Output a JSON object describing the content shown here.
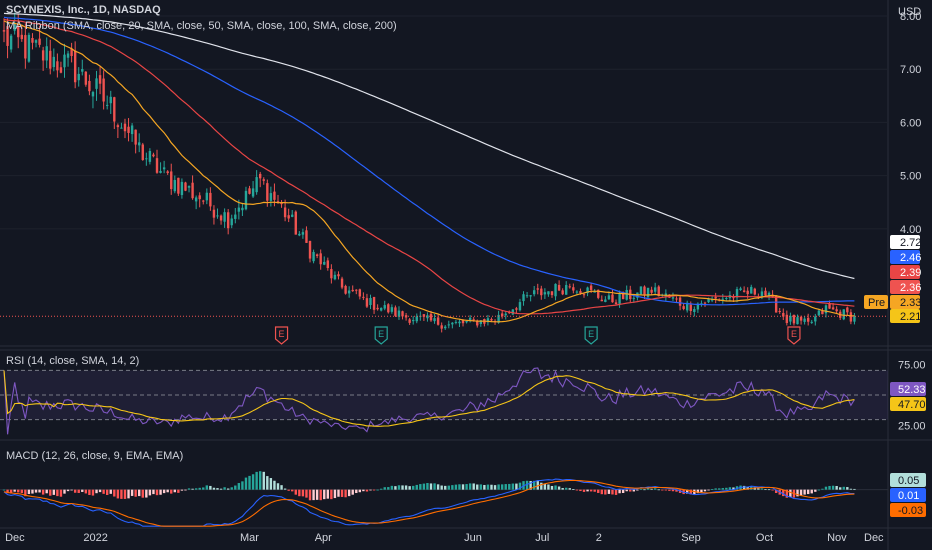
{
  "header": {
    "symbol_line": "SCYNEXIS, Inc., 1D, NASDAQ",
    "ma_ribbon": "MA Ribbon (SMA, close, 20, SMA, close, 50, SMA, close, 100, SMA, close, 200)",
    "rsi_legend": "RSI (14, close, SMA, 14, 2)",
    "macd_legend": "MACD (12, 26, close, 9, EMA, EMA)",
    "currency": "USD"
  },
  "colors": {
    "background": "#131722",
    "up": "#26a69a",
    "down": "#ef5350",
    "sma20": "#f5a623",
    "sma50": "#e84545",
    "sma100": "#2962ff",
    "sma200": "#e0e3eb",
    "rsi": "#7e57c2",
    "rsi_ma": "#f5c518",
    "macd": "#2962ff",
    "signal": "#ff6d00"
  },
  "chart_data": [
    {
      "type": "candlestick",
      "title": "SCYNEXIS, Inc., 1D, NASDAQ",
      "ylim": [
        1.8,
        8.3
      ],
      "y_ticks": [
        "8.00",
        "7.00",
        "6.00",
        "5.00",
        "4.00"
      ],
      "x_labels": [
        "Dec",
        "2022",
        "Mar",
        "Apr",
        "Jun",
        "Jul",
        "2",
        "Sep",
        "Oct",
        "Nov",
        "Dec"
      ],
      "anchors": [
        {
          "t": 0,
          "v": 7.6
        },
        {
          "t": 10,
          "v": 7.3
        },
        {
          "t": 20,
          "v": 7.0
        },
        {
          "t": 30,
          "v": 6.3
        },
        {
          "t": 38,
          "v": 5.5
        },
        {
          "t": 45,
          "v": 5.0
        },
        {
          "t": 55,
          "v": 4.6
        },
        {
          "t": 63,
          "v": 4.2
        },
        {
          "t": 72,
          "v": 4.9
        },
        {
          "t": 78,
          "v": 4.4
        },
        {
          "t": 86,
          "v": 3.6
        },
        {
          "t": 95,
          "v": 2.9
        },
        {
          "t": 103,
          "v": 2.6
        },
        {
          "t": 113,
          "v": 2.35
        },
        {
          "t": 125,
          "v": 2.2
        },
        {
          "t": 138,
          "v": 2.3
        },
        {
          "t": 148,
          "v": 2.75
        },
        {
          "t": 160,
          "v": 2.95
        },
        {
          "t": 170,
          "v": 2.65
        },
        {
          "t": 182,
          "v": 2.85
        },
        {
          "t": 192,
          "v": 2.55
        },
        {
          "t": 205,
          "v": 2.75
        },
        {
          "t": 213,
          "v": 2.85
        },
        {
          "t": 220,
          "v": 2.3
        },
        {
          "t": 226,
          "v": 2.2
        },
        {
          "t": 231,
          "v": 2.5
        },
        {
          "t": 238,
          "v": 2.36
        }
      ],
      "earnings_markers": [
        {
          "label": "E",
          "t": 78,
          "kind": "down"
        },
        {
          "t": 106,
          "label": "E",
          "kind": "up"
        },
        {
          "t": 165,
          "label": "E",
          "kind": "up"
        },
        {
          "t": 222,
          "label": "E",
          "kind": "down"
        }
      ],
      "price_labels": [
        {
          "text": "2.72",
          "series": "SMA 200",
          "bg": "#ffffff",
          "fg": "#131722"
        },
        {
          "text": "2.46",
          "series": "SMA 100",
          "bg": "#2962ff",
          "fg": "#ffffff"
        },
        {
          "text": "2.39",
          "series": "SMA 50",
          "bg": "#e84545",
          "fg": "#ffffff"
        },
        {
          "text": "2.36",
          "series": "Last",
          "bg": "#ef5350",
          "fg": "#ffffff"
        },
        {
          "text": "2.33",
          "series": "SMA 20",
          "bg": "#f5a623",
          "fg": "#131722"
        },
        {
          "text": "2.21",
          "series": "Pre",
          "bg": "#f5c518",
          "fg": "#131722"
        }
      ],
      "pre_label": "Pre",
      "last_price": 2.36
    },
    {
      "type": "line",
      "title": "RSI (14, close, SMA, 14, 2)",
      "ylim": [
        15,
        85
      ],
      "y_ticks": [
        "75.00",
        "25.00"
      ],
      "band": [
        30,
        70
      ],
      "mid": 50,
      "values_label": [
        {
          "text": "52.33",
          "series": "RSI",
          "bg": "#7e57c2",
          "fg": "#ffffff"
        },
        {
          "text": "47.70",
          "series": "RSI MA",
          "bg": "#f5c518",
          "fg": "#131722"
        }
      ]
    },
    {
      "type": "bar",
      "title": "MACD (12, 26, close, 9, EMA, EMA)",
      "ylim": [
        -0.45,
        0.55
      ],
      "values_label": [
        {
          "text": "0.05",
          "series": "Histogram",
          "bg": "#b2dfdb",
          "fg": "#131722"
        },
        {
          "text": "0.01",
          "series": "MACD",
          "bg": "#2962ff",
          "fg": "#ffffff"
        },
        {
          "text": "-0.03",
          "series": "Signal",
          "bg": "#ff6d00",
          "fg": "#131722"
        }
      ]
    }
  ]
}
